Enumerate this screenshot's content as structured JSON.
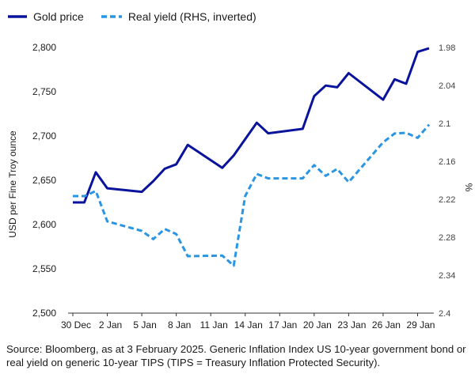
{
  "legend": {
    "gold_label": "Gold price",
    "yield_label": "Real yield (RHS, inverted)"
  },
  "footnote": "Source: Bloomberg, as at 3 February 2025. Generic Inflation Index US 10-year government bond or real yield on generic 10-year TIPS (TIPS = Treasury Inflation Protected Security).",
  "colors": {
    "gold": "#0a139b",
    "yield": "#2a95e3",
    "text": "#1a1a1a"
  },
  "chart_data": {
    "type": "line",
    "x_start": "2024-12-30",
    "x_tick_labels": [
      "30 Dec",
      "2 Jan",
      "5 Jan",
      "8 Jan",
      "11 Jan",
      "14 Jan",
      "17 Jan",
      "20 Jan",
      "23 Jan",
      "26 Jan",
      "29 Jan"
    ],
    "ylabel": "USD per Fine Troy ounce",
    "ylim": [
      2500,
      2800
    ],
    "yticks": [
      2500,
      2550,
      2600,
      2650,
      2700,
      2750,
      2800
    ],
    "ytick_labels": [
      "2,500",
      "2,550",
      "2,600",
      "2,650",
      "2,700",
      "2,750",
      "2,800"
    ],
    "y2label": "%",
    "y2lim": [
      2.4,
      1.98
    ],
    "y2_inverted": true,
    "y2ticks": [
      1.98,
      2.04,
      2.1,
      2.16,
      2.22,
      2.28,
      2.34,
      2.4
    ],
    "y2tick_labels": [
      "1.98",
      "2.04",
      "2.1",
      "2.16",
      "2.22",
      "2.28",
      "2.34",
      "2.4"
    ],
    "series": [
      {
        "name": "Gold price",
        "axis": "left",
        "style": "solid",
        "points": [
          [
            "2024-12-30",
            2625
          ],
          [
            "2024-12-31",
            2625
          ],
          [
            "2025-01-01",
            2659
          ],
          [
            "2025-01-02",
            2641
          ],
          [
            "2025-01-05",
            2637
          ],
          [
            "2025-01-06",
            2649
          ],
          [
            "2025-01-07",
            2663
          ],
          [
            "2025-01-08",
            2668
          ],
          [
            "2025-01-09",
            2690
          ],
          [
            "2025-01-12",
            2664
          ],
          [
            "2025-01-13",
            2678
          ],
          [
            "2025-01-15",
            2715
          ],
          [
            "2025-01-16",
            2703
          ],
          [
            "2025-01-19",
            2708
          ],
          [
            "2025-01-20",
            2745
          ],
          [
            "2025-01-21",
            2757
          ],
          [
            "2025-01-22",
            2755
          ],
          [
            "2025-01-23",
            2771
          ],
          [
            "2025-01-26",
            2741
          ],
          [
            "2025-01-27",
            2764
          ],
          [
            "2025-01-28",
            2759
          ],
          [
            "2025-01-29",
            2795
          ],
          [
            "2025-01-30",
            2799
          ]
        ]
      },
      {
        "name": "Real yield (RHS, inverted)",
        "axis": "right",
        "style": "dashed",
        "points": [
          [
            "2024-12-30",
            2.215
          ],
          [
            "2024-12-31",
            2.215
          ],
          [
            "2025-01-01",
            2.207
          ],
          [
            "2025-01-02",
            2.255
          ],
          [
            "2025-01-05",
            2.27
          ],
          [
            "2025-01-06",
            2.283
          ],
          [
            "2025-01-07",
            2.267
          ],
          [
            "2025-01-08",
            2.275
          ],
          [
            "2025-01-09",
            2.31
          ],
          [
            "2025-01-12",
            2.309
          ],
          [
            "2025-01-13",
            2.325
          ],
          [
            "2025-01-14",
            2.215
          ],
          [
            "2025-01-15",
            2.18
          ],
          [
            "2025-01-16",
            2.187
          ],
          [
            "2025-01-19",
            2.187
          ],
          [
            "2025-01-20",
            2.166
          ],
          [
            "2025-01-21",
            2.183
          ],
          [
            "2025-01-22",
            2.172
          ],
          [
            "2025-01-23",
            2.193
          ],
          [
            "2025-01-26",
            2.13
          ],
          [
            "2025-01-27",
            2.116
          ],
          [
            "2025-01-28",
            2.115
          ],
          [
            "2025-01-29",
            2.123
          ],
          [
            "2025-01-30",
            2.102
          ]
        ]
      }
    ]
  }
}
